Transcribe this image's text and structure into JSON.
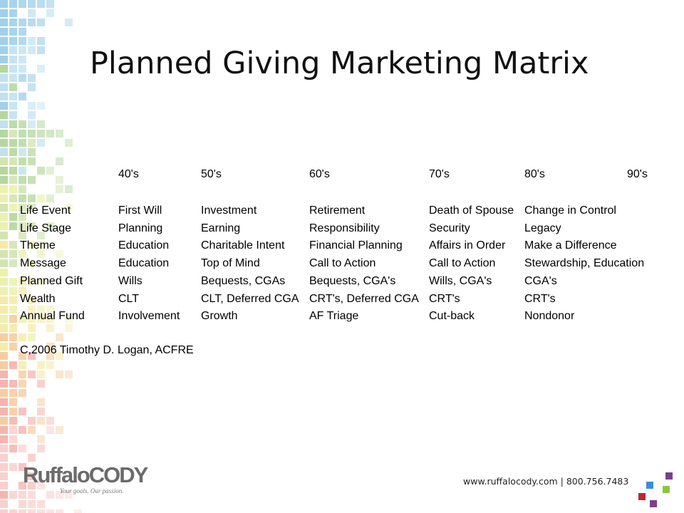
{
  "slide": {
    "title": "Planned Giving Marketing Matrix",
    "copyright": "C,2006 Timothy D. Logan, ACFRE"
  },
  "matrix": {
    "columns": [
      "40's",
      "50's",
      "60's",
      "70's",
      "80's",
      "90's"
    ],
    "rows": [
      {
        "label": "Life Event",
        "values": [
          "First Will",
          "Investment",
          "Retirement",
          "Death of Spouse",
          "Change in Control"
        ]
      },
      {
        "label": "Life Stage",
        "values": [
          "Planning",
          "Earning",
          "Responsibility",
          "Security",
          "Legacy"
        ]
      },
      {
        "label": "Theme",
        "values": [
          "Education",
          "Charitable Intent",
          "Financial Planning",
          "Affairs in Order",
          "Make a Difference"
        ]
      },
      {
        "label": "Message",
        "values": [
          "Education",
          "Top of Mind",
          "Call to Action",
          "Call to Action",
          "Stewardship, Education"
        ]
      },
      {
        "label": "Planned Gift",
        "values": [
          "Wills",
          "Bequests, CGAs",
          "Bequests, CGA's",
          "Wills, CGA's",
          "CGA's"
        ]
      },
      {
        "label": "Wealth",
        "values": [
          "CLT",
          "CLT, Deferred CGA",
          "CRT's, Deferred CGA",
          "CRT's",
          "CRT's"
        ]
      },
      {
        "label": "Annual Fund",
        "values": [
          "Involvement",
          "Growth",
          "AF Triage",
          "Cut-back",
          "Nondonor"
        ]
      }
    ]
  },
  "footer": {
    "logo_name": "RuffaloCODY",
    "logo_tagline": "Your goals. Our passion.",
    "contact": "www.ruffalocody.com  |  800.756.7483"
  },
  "colors": {
    "mosaic": [
      "#8fc8e8",
      "#b5dcef",
      "#a8d08d",
      "#c9e0a5",
      "#e9ef9f",
      "#f4e79a",
      "#f6c48f",
      "#f4a7a2",
      "#f7c9c6"
    ],
    "accent_squares": [
      "#7b3f8c",
      "#3a8fd3",
      "#8cc63f",
      "#c0262d"
    ]
  }
}
